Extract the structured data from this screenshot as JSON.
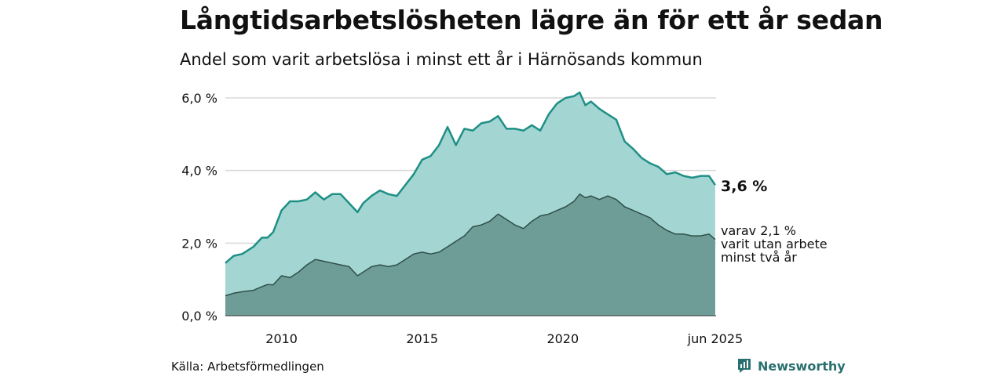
{
  "title": "Långtidsarbetslösheten lägre än för ett år sedan",
  "subtitle": "Andel som varit arbetslösa i minst ett år i Härnösands kommun",
  "source": "Källa: Arbetsförmedlingen",
  "brand": "Newsworthy",
  "colors": {
    "total_fill": "#a3d6d2",
    "total_line": "#1f8f86",
    "sub_fill": "#6e9c96",
    "sub_line": "#2f4f4a",
    "grid": "#d8d8d8",
    "brand": "#2a6f70"
  },
  "chart_data": {
    "type": "area",
    "title": "Långtidsarbetslösheten lägre än för ett år sedan",
    "subtitle": "Andel som varit arbetslösa i minst ett år i Härnösands kommun",
    "xlabel": "",
    "ylabel": "",
    "ylim": [
      0,
      6
    ],
    "yticks": [
      0,
      2,
      4,
      6
    ],
    "ytick_labels": [
      "0,0 %",
      "2,0 %",
      "4,0 %",
      "6,0 %"
    ],
    "xlim": [
      2008.0,
      2025.45
    ],
    "xticks": [
      2010,
      2015,
      2020,
      2025.42
    ],
    "xtick_labels": [
      "2010",
      "2015",
      "2020",
      "jun 2025"
    ],
    "grid": true,
    "series": [
      {
        "key": "total",
        "end_label": "3,6 %",
        "x": [
          2008.0,
          2008.3,
          2008.6,
          2009.0,
          2009.3,
          2009.5,
          2009.7,
          2010.0,
          2010.3,
          2010.6,
          2010.9,
          2011.2,
          2011.5,
          2011.8,
          2012.1,
          2012.4,
          2012.7,
          2012.9,
          2013.2,
          2013.5,
          2013.8,
          2014.1,
          2014.4,
          2014.7,
          2015.0,
          2015.3,
          2015.6,
          2015.9,
          2016.2,
          2016.5,
          2016.8,
          2017.1,
          2017.4,
          2017.7,
          2018.0,
          2018.3,
          2018.6,
          2018.9,
          2019.2,
          2019.5,
          2019.8,
          2020.1,
          2020.4,
          2020.6,
          2020.8,
          2021.0,
          2021.3,
          2021.6,
          2021.9,
          2022.2,
          2022.5,
          2022.8,
          2023.1,
          2023.4,
          2023.7,
          2024.0,
          2024.3,
          2024.6,
          2024.9,
          2025.2,
          2025.42
        ],
        "values": [
          1.45,
          1.65,
          1.7,
          1.9,
          2.15,
          2.15,
          2.3,
          2.9,
          3.15,
          3.15,
          3.2,
          3.4,
          3.2,
          3.35,
          3.35,
          3.1,
          2.85,
          3.1,
          3.3,
          3.45,
          3.35,
          3.3,
          3.6,
          3.9,
          4.3,
          4.4,
          4.7,
          5.2,
          4.7,
          5.15,
          5.1,
          5.3,
          5.35,
          5.5,
          5.15,
          5.15,
          5.1,
          5.25,
          5.1,
          5.55,
          5.85,
          6.0,
          6.05,
          6.15,
          5.8,
          5.9,
          5.7,
          5.55,
          5.4,
          4.8,
          4.6,
          4.35,
          4.2,
          4.1,
          3.9,
          3.95,
          3.85,
          3.8,
          3.85,
          3.85,
          3.6
        ]
      },
      {
        "key": "sub",
        "end_label_lines": [
          "varav 2,1 %",
          "varit utan arbete",
          "minst två år"
        ],
        "x": [
          2008.0,
          2008.3,
          2008.6,
          2009.0,
          2009.3,
          2009.5,
          2009.7,
          2010.0,
          2010.3,
          2010.6,
          2010.9,
          2011.2,
          2011.5,
          2011.8,
          2012.1,
          2012.4,
          2012.7,
          2012.9,
          2013.2,
          2013.5,
          2013.8,
          2014.1,
          2014.4,
          2014.7,
          2015.0,
          2015.3,
          2015.6,
          2015.9,
          2016.2,
          2016.5,
          2016.8,
          2017.1,
          2017.4,
          2017.7,
          2018.0,
          2018.3,
          2018.6,
          2018.9,
          2019.2,
          2019.5,
          2019.8,
          2020.1,
          2020.4,
          2020.6,
          2020.8,
          2021.0,
          2021.3,
          2021.6,
          2021.9,
          2022.2,
          2022.5,
          2022.8,
          2023.1,
          2023.4,
          2023.7,
          2024.0,
          2024.3,
          2024.6,
          2024.9,
          2025.2,
          2025.42
        ],
        "values": [
          0.55,
          0.62,
          0.66,
          0.7,
          0.8,
          0.86,
          0.85,
          1.1,
          1.05,
          1.2,
          1.4,
          1.55,
          1.5,
          1.45,
          1.4,
          1.35,
          1.1,
          1.2,
          1.35,
          1.4,
          1.35,
          1.4,
          1.55,
          1.7,
          1.75,
          1.7,
          1.75,
          1.9,
          2.05,
          2.2,
          2.45,
          2.5,
          2.6,
          2.8,
          2.65,
          2.5,
          2.4,
          2.6,
          2.75,
          2.8,
          2.9,
          3.0,
          3.15,
          3.35,
          3.25,
          3.3,
          3.2,
          3.3,
          3.2,
          3.0,
          2.9,
          2.8,
          2.7,
          2.5,
          2.35,
          2.25,
          2.25,
          2.2,
          2.2,
          2.25,
          2.1
        ]
      }
    ]
  }
}
